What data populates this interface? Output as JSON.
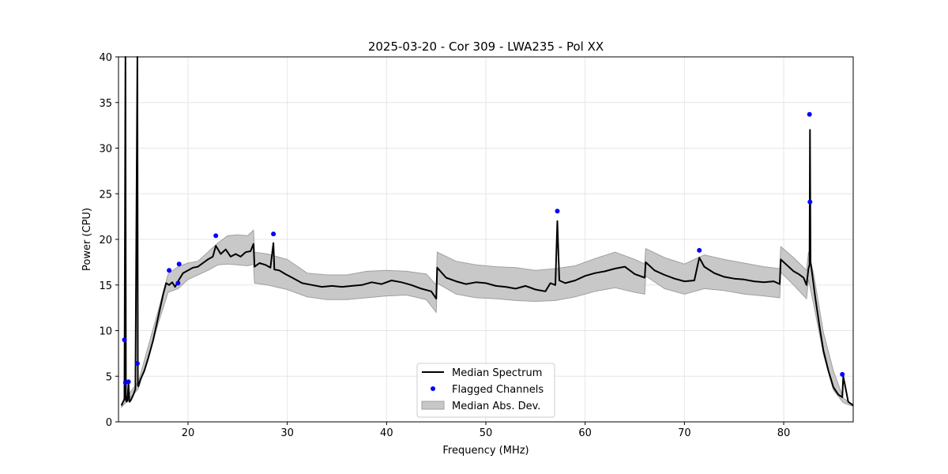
{
  "chart_data": {
    "type": "line",
    "title": "2025-03-20 - Cor 309 - LWA235 - Pol XX",
    "xlabel": "Frequency (MHz)",
    "ylabel": "Power (CPU)",
    "xlim": [
      13,
      87
    ],
    "ylim": [
      0,
      40
    ],
    "xticks": [
      20,
      30,
      40,
      50,
      60,
      70,
      80
    ],
    "yticks": [
      0,
      5,
      10,
      15,
      20,
      25,
      30,
      35,
      40
    ],
    "grid": true,
    "legend_position": "bottom-center",
    "colors": {
      "median": "#000000",
      "flagged": "#0000ff",
      "band": "#c8c8c8",
      "band_edge": "#a0a0a0",
      "grid": "#e6e6e6"
    },
    "series": [
      {
        "name": "Median Spectrum",
        "kind": "line",
        "x": [
          13.3,
          13.6,
          13.7,
          13.75,
          13.8,
          13.9,
          14.0,
          14.1,
          14.2,
          14.3,
          14.5,
          14.7,
          14.9,
          14.95,
          15.0,
          15.2,
          15.6,
          16.0,
          16.5,
          17.0,
          17.5,
          17.8,
          18.1,
          18.4,
          18.7,
          19.1,
          19.5,
          20.0,
          20.5,
          21.0,
          21.5,
          22.0,
          22.5,
          22.8,
          23.3,
          23.8,
          24.3,
          24.8,
          25.3,
          25.8,
          26.3,
          26.6,
          26.7,
          27.2,
          27.8,
          28.3,
          28.6,
          28.7,
          29.2,
          29.8,
          30.5,
          31.5,
          32.5,
          33.5,
          34.5,
          35.5,
          36.5,
          37.5,
          38.5,
          39.5,
          40.5,
          41.5,
          42.5,
          43.5,
          44.5,
          45.0,
          45.1,
          46.0,
          47.0,
          48.0,
          49.0,
          50.0,
          51.0,
          52.0,
          53.0,
          54.0,
          55.0,
          56.0,
          56.5,
          57.0,
          57.2,
          57.4,
          58.0,
          59.0,
          60.0,
          61.0,
          62.0,
          63.0,
          64.0,
          65.0,
          66.0,
          66.1,
          67.0,
          68.0,
          69.0,
          70.0,
          71.0,
          71.5,
          72.0,
          73.0,
          74.0,
          75.0,
          76.0,
          77.0,
          78.0,
          79.0,
          79.6,
          79.7,
          80.3,
          81.0,
          81.5,
          82.0,
          82.3,
          82.5,
          82.6,
          82.65,
          82.7,
          82.8,
          83.2,
          83.6,
          84.0,
          84.5,
          85.0,
          85.5,
          85.9,
          86.0,
          86.5,
          87.0
        ],
        "y": [
          1.8,
          2.5,
          40,
          2.4,
          2.2,
          2.3,
          4.3,
          2.2,
          2.3,
          2.5,
          3.0,
          3.6,
          40,
          4.0,
          3.9,
          4.6,
          5.6,
          7.0,
          9.0,
          11.5,
          14.0,
          15.2,
          15.0,
          15.3,
          14.8,
          15.6,
          16.3,
          16.6,
          16.9,
          17.0,
          17.4,
          17.8,
          18.1,
          19.3,
          18.4,
          18.9,
          18.1,
          18.4,
          18.1,
          18.6,
          18.7,
          19.5,
          17.0,
          17.4,
          17.2,
          16.9,
          19.6,
          16.7,
          16.6,
          16.2,
          15.8,
          15.2,
          15.0,
          14.8,
          14.9,
          14.8,
          14.9,
          15.0,
          15.3,
          15.1,
          15.5,
          15.3,
          15.0,
          14.6,
          14.3,
          13.5,
          16.9,
          15.8,
          15.4,
          15.1,
          15.3,
          15.2,
          14.9,
          14.8,
          14.6,
          14.9,
          14.5,
          14.3,
          15.2,
          15.0,
          22.0,
          15.5,
          15.2,
          15.5,
          16.0,
          16.3,
          16.5,
          16.8,
          17.0,
          16.2,
          15.8,
          17.5,
          16.6,
          16.1,
          15.7,
          15.4,
          15.5,
          18.0,
          17.0,
          16.3,
          15.9,
          15.7,
          15.6,
          15.4,
          15.3,
          15.4,
          15.1,
          17.8,
          17.2,
          16.5,
          16.2,
          15.8,
          15.0,
          16.8,
          17.2,
          32.0,
          17.5,
          16.8,
          13.5,
          10.5,
          7.8,
          5.6,
          3.8,
          3.0,
          2.7,
          5.0,
          2.2,
          1.8
        ]
      },
      {
        "name": "Flagged Channels",
        "kind": "scatter",
        "x": [
          13.6,
          13.7,
          14.0,
          14.9,
          18.1,
          19.0,
          19.1,
          22.8,
          28.6,
          57.2,
          71.5,
          82.6,
          82.65,
          85.9
        ],
        "y": [
          9.0,
          4.3,
          4.4,
          6.4,
          16.6,
          15.2,
          17.3,
          20.4,
          20.6,
          23.1,
          18.8,
          33.7,
          24.1,
          5.2
        ]
      },
      {
        "name": "Median Abs. Dev.",
        "kind": "band",
        "x": [
          13.3,
          15.0,
          17.0,
          18.0,
          19.0,
          20.0,
          21.0,
          22.0,
          23.0,
          24.0,
          25.0,
          26.0,
          26.6,
          26.7,
          28.0,
          30.0,
          32.0,
          34.0,
          36.0,
          38.0,
          40.0,
          42.0,
          44.0,
          45.0,
          45.1,
          47.0,
          49.0,
          51.0,
          53.0,
          55.0,
          57.0,
          59.0,
          61.0,
          63.0,
          65.0,
          66.0,
          66.1,
          68.0,
          70.0,
          72.0,
          74.0,
          76.0,
          78.0,
          79.6,
          79.7,
          81.0,
          82.3,
          82.5,
          83.0,
          84.0,
          85.0,
          86.0,
          87.0
        ],
        "lower": [
          1.6,
          3.6,
          10.8,
          14.2,
          14.6,
          15.6,
          16.1,
          16.6,
          17.2,
          17.3,
          17.2,
          17.1,
          17.3,
          15.2,
          15.0,
          14.5,
          13.7,
          13.4,
          13.4,
          13.6,
          13.8,
          13.9,
          13.4,
          12.0,
          15.2,
          14.0,
          13.6,
          13.5,
          13.3,
          13.2,
          13.3,
          13.7,
          14.3,
          14.7,
          14.2,
          14.0,
          16.0,
          14.6,
          14.0,
          14.6,
          14.4,
          14.0,
          13.8,
          13.6,
          16.4,
          15.0,
          13.5,
          15.6,
          13.0,
          7.4,
          3.5,
          2.1,
          1.7
        ],
        "upper": [
          2.0,
          4.4,
          12.2,
          16.2,
          17.0,
          17.4,
          17.6,
          18.6,
          19.6,
          20.4,
          20.5,
          20.4,
          21.0,
          18.6,
          18.4,
          17.8,
          16.3,
          16.1,
          16.1,
          16.5,
          16.6,
          16.5,
          16.2,
          15.0,
          18.6,
          17.6,
          17.2,
          17.0,
          16.9,
          16.6,
          16.8,
          17.1,
          17.9,
          18.6,
          17.8,
          17.3,
          19.0,
          18.0,
          17.3,
          18.3,
          17.8,
          17.4,
          17.0,
          16.8,
          19.2,
          18.0,
          16.6,
          18.6,
          16.3,
          9.8,
          5.6,
          2.6,
          1.9
        ]
      }
    ]
  }
}
